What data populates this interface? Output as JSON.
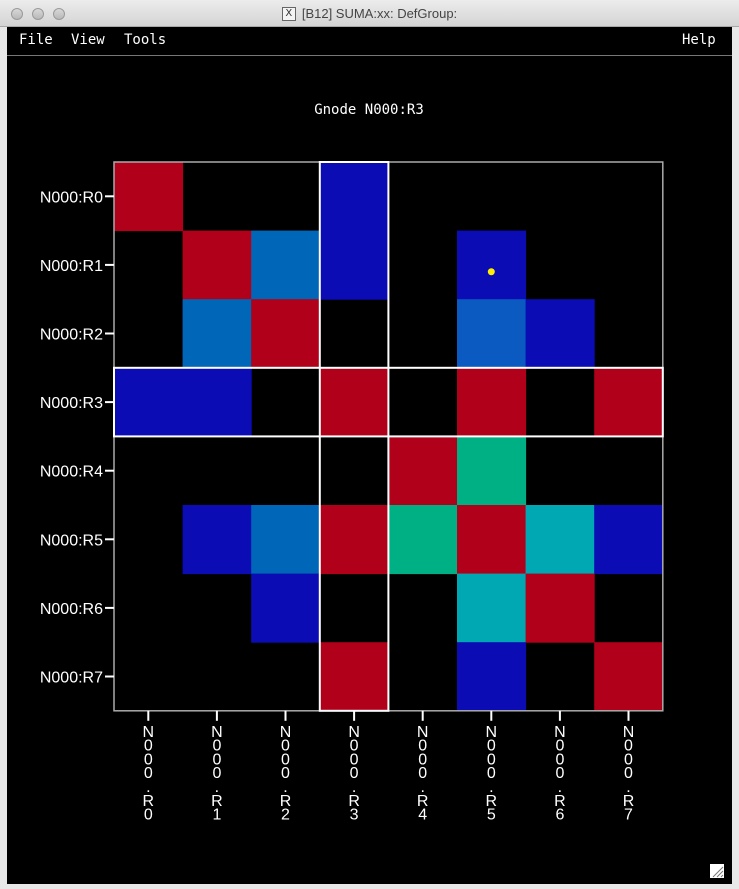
{
  "window": {
    "title": "[B12] SUMA:xx: DefGroup:"
  },
  "menu": {
    "file": "File",
    "view": "View",
    "tools": "Tools",
    "help": "Help"
  },
  "plot": {
    "title": "Gnode N000:R3",
    "row_labels": [
      "N000:R0",
      "N000:R1",
      "N000:R2",
      "N000:R3",
      "N000:R4",
      "N000:R5",
      "N000:R6",
      "N000:R7"
    ],
    "col_labels": [
      "N000.R0",
      "N000.R1",
      "N000.R2",
      "N000.R3",
      "N000.R4",
      "N000.R5",
      "N000.R6",
      "N000.R7"
    ],
    "selected_row": 3,
    "selected_col": 3,
    "marker": {
      "row": 1,
      "col": 5,
      "color": "#ffee00"
    },
    "colors": {
      "red": "#b0001a",
      "navy": "#0c0cb4",
      "blue": "#0066b8",
      "blue2": "#0a5ac2",
      "green": "#00b085",
      "cyan": "#00a8b4",
      "background": "#000000",
      "outline": "#aaaaaa",
      "selection": "#ffffff"
    },
    "cells": [
      [
        "red",
        null,
        null,
        "navy",
        null,
        null,
        null,
        null
      ],
      [
        null,
        "red",
        "blue",
        "navy",
        null,
        "navy",
        null,
        null
      ],
      [
        null,
        "blue",
        "red",
        null,
        null,
        "blue2",
        "navy",
        null
      ],
      [
        "navy",
        "navy",
        null,
        "red",
        null,
        "red",
        null,
        "red"
      ],
      [
        null,
        null,
        null,
        null,
        "red",
        "green",
        null,
        null
      ],
      [
        null,
        "navy",
        "blue",
        "red",
        "green",
        "red",
        "cyan",
        "navy"
      ],
      [
        null,
        null,
        "navy",
        null,
        null,
        "cyan",
        "red",
        null
      ],
      [
        null,
        null,
        null,
        "red",
        null,
        "navy",
        null,
        "red"
      ]
    ]
  }
}
